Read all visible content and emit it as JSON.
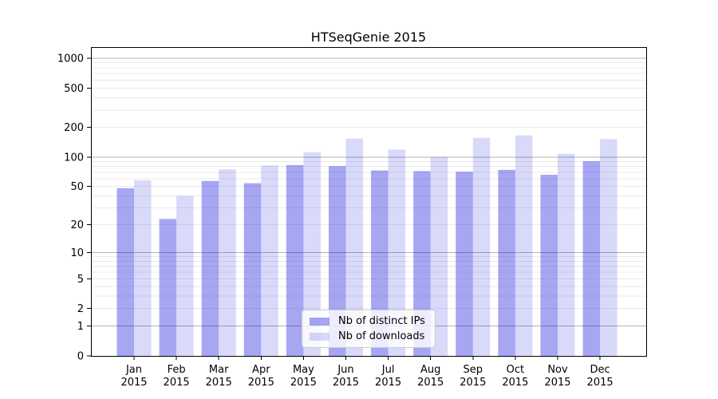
{
  "chart_data": {
    "type": "bar",
    "title": "HTSeqGenie 2015",
    "year_label": "2015",
    "categories": [
      "Jan",
      "Feb",
      "Mar",
      "Apr",
      "May",
      "Jun",
      "Jul",
      "Aug",
      "Sep",
      "Oct",
      "Nov",
      "Dec"
    ],
    "series": [
      {
        "key": "distinct-ips",
        "name": "Nb of distinct IPs",
        "color": "rgba(0,0,221,0.35)",
        "values": [
          48,
          23,
          57,
          54,
          83,
          81,
          73,
          72,
          71,
          74,
          66,
          91
        ]
      },
      {
        "key": "downloads",
        "name": "Nb of downloads",
        "color": "rgba(0,0,221,0.15)",
        "values": [
          58,
          40,
          75,
          82,
          112,
          154,
          119,
          100,
          157,
          166,
          108,
          152
        ]
      }
    ],
    "y_scale": "log1p",
    "y_ticks": [
      0,
      1,
      2,
      5,
      10,
      20,
      50,
      100,
      200,
      500,
      1000
    ],
    "ylim": [
      0,
      1000
    ],
    "xlabel": "",
    "ylabel": "",
    "grid": true,
    "legend_position": "lower center inside"
  },
  "colors": {
    "grid_minor": "#ebebeb",
    "grid_major": "#b3b3b3",
    "axis": "#000000",
    "text": "#000000",
    "legend_border": "#cccccc",
    "background": "#ffffff"
  }
}
